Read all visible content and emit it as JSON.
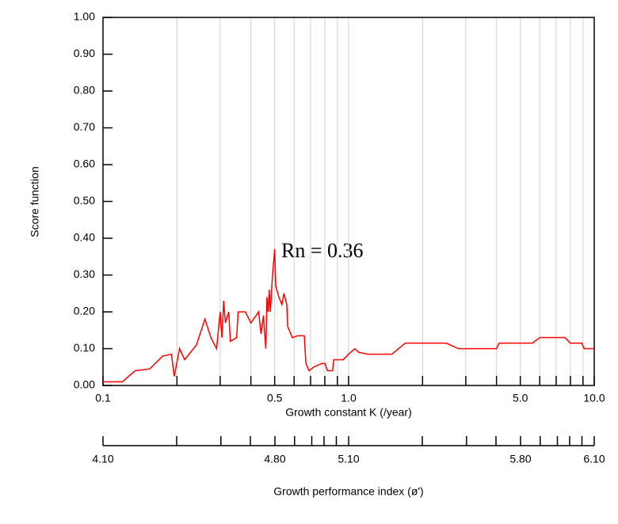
{
  "chart_data": {
    "type": "line",
    "xlabel": "Growth constant K (/year)",
    "ylabel": "Score function",
    "x2label": "Growth performance index (ø')",
    "annotation": "Rn = 0.36",
    "xscale": "log",
    "grid": "x",
    "xlim": [
      0.1,
      10
    ],
    "ylim": [
      0,
      1
    ],
    "xticks": [
      0.1,
      0.5,
      {
        "value": 1,
        "label": "1.0"
      },
      {
        "value": 5,
        "label": "5.0"
      },
      {
        "value": 10,
        "label": "10.0"
      }
    ],
    "xminor_ticks": [
      0.2,
      0.3,
      0.4,
      0.6,
      0.7,
      0.8,
      0.9,
      2,
      3,
      4,
      6,
      7,
      8,
      9
    ],
    "yticks": [
      {
        "value": 0,
        "label": "0.00"
      },
      {
        "value": 0.1,
        "label": "0.10"
      },
      {
        "value": 0.2,
        "label": "0.20"
      },
      {
        "value": 0.3,
        "label": "0.30"
      },
      {
        "value": 0.4,
        "label": "0.40"
      },
      {
        "value": 0.5,
        "label": "0.50"
      },
      {
        "value": 0.6,
        "label": "0.60"
      },
      {
        "value": 0.7,
        "label": "0.70"
      },
      {
        "value": 0.8,
        "label": "0.80"
      },
      {
        "value": 0.9,
        "label": "0.90"
      },
      {
        "value": 1,
        "label": "1.00"
      }
    ],
    "x2lim": [
      4.1,
      6.1
    ],
    "x2ticks": [
      {
        "value": 4.1,
        "label": "4.10"
      },
      {
        "value": 4.8,
        "label": "4.80"
      },
      {
        "value": 5.1,
        "label": "5.10"
      },
      {
        "value": 5.8,
        "label": "5.80"
      },
      {
        "value": 6.1,
        "label": "6.10"
      }
    ],
    "x2minor_ticks": [
      4.4,
      4.58,
      4.7,
      4.88,
      4.95,
      5.0,
      5.05,
      5.4,
      5.58,
      5.7,
      5.88,
      5.95,
      6.0,
      6.05
    ],
    "series": [
      {
        "color": "#ff0000",
        "x": [
          0.1,
          0.12,
          0.135,
          0.155,
          0.175,
          0.19,
          0.195,
          0.205,
          0.215,
          0.24,
          0.26,
          0.275,
          0.29,
          0.3,
          0.305,
          0.31,
          0.315,
          0.325,
          0.33,
          0.35,
          0.355,
          0.38,
          0.4,
          0.42,
          0.43,
          0.44,
          0.45,
          0.46,
          0.465,
          0.47,
          0.475,
          0.48,
          0.49,
          0.5,
          0.505,
          0.52,
          0.535,
          0.545,
          0.56,
          0.565,
          0.59,
          0.62,
          0.66,
          0.67,
          0.69,
          0.72,
          0.78,
          0.8,
          0.82,
          0.86,
          0.87,
          0.95,
          1.0,
          1.06,
          1.1,
          1.2,
          1.5,
          1.7,
          2.5,
          2.8,
          4.0,
          4.1,
          5.6,
          6.0,
          7.6,
          8.0,
          8.9,
          9.1,
          10
        ],
        "values": [
          0.01,
          0.01,
          0.04,
          0.045,
          0.08,
          0.085,
          0.025,
          0.1,
          0.07,
          0.11,
          0.18,
          0.13,
          0.1,
          0.2,
          0.13,
          0.23,
          0.17,
          0.2,
          0.12,
          0.13,
          0.2,
          0.2,
          0.17,
          0.19,
          0.2,
          0.14,
          0.19,
          0.1,
          0.24,
          0.2,
          0.26,
          0.2,
          0.3,
          0.37,
          0.27,
          0.24,
          0.22,
          0.25,
          0.22,
          0.16,
          0.13,
          0.135,
          0.135,
          0.06,
          0.04,
          0.05,
          0.06,
          0.06,
          0.04,
          0.04,
          0.07,
          0.07,
          0.085,
          0.1,
          0.09,
          0.085,
          0.085,
          0.115,
          0.115,
          0.1,
          0.1,
          0.115,
          0.115,
          0.13,
          0.13,
          0.115,
          0.115,
          0.1,
          0.1
        ]
      }
    ]
  }
}
